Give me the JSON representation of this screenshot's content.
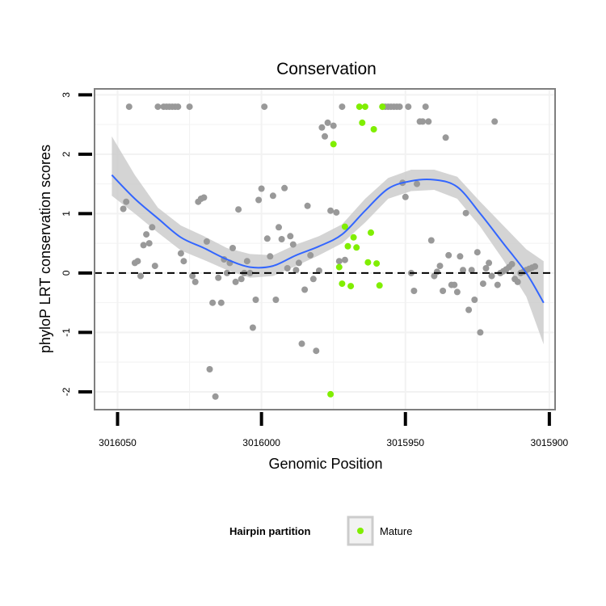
{
  "chart_data": {
    "type": "scatter",
    "title": "Conservation",
    "xlabel": "Genomic Position",
    "ylabel": "phyloP LRT conservation scores",
    "x_reversed": true,
    "xlim": [
      3016058,
      3015898
    ],
    "ylim": [
      -2.3,
      3.1
    ],
    "x_ticks": [
      3016050,
      3016000,
      3015950,
      3015900
    ],
    "x_tick_labels": [
      "3016050",
      "3016000",
      "3015950",
      "3015900"
    ],
    "y_ticks": [
      -2,
      -1,
      0,
      1,
      2,
      3
    ],
    "y_tick_labels": [
      "-2",
      "-1",
      "0",
      "1",
      "2",
      "3"
    ],
    "grid": true,
    "reference_line": {
      "y": 0,
      "style": "dashed",
      "color": "#000000"
    },
    "colors": {
      "other": "#999999",
      "mature": "#80ee00",
      "smooth_line": "#3366ff",
      "ribbon": "#cccccc",
      "panel_border": "#7f7f7f",
      "grid": "#f2f2f2"
    },
    "series": [
      {
        "color_key": "other",
        "x": [
          3016048,
          3016047,
          3016046,
          3016044,
          3016043,
          3016042,
          3016041,
          3016040,
          3016039,
          3016038,
          3016037,
          3016036,
          3016034,
          3016033,
          3016032,
          3016031,
          3016030,
          3016029,
          3016028,
          3016027,
          3016025,
          3016024,
          3016023,
          3016022,
          3016021,
          3016020,
          3016019,
          3016018,
          3016017,
          3016016,
          3016015,
          3016014,
          3016013,
          3016012,
          3016011,
          3016010,
          3016009,
          3016008,
          3016007,
          3016006,
          3016005,
          3016004,
          3016003,
          3016002,
          3016001,
          3016000,
          3015999,
          3015998,
          3015997,
          3015996,
          3015995,
          3015994,
          3015993,
          3015992,
          3015991,
          3015990,
          3015989,
          3015988,
          3015987,
          3015986,
          3015985,
          3015984,
          3015983,
          3015982,
          3015981,
          3015980,
          3015979,
          3015978,
          3015977,
          3015976,
          3015975,
          3015974,
          3015973,
          3015972,
          3015971,
          3015958,
          3015957,
          3015956,
          3015955,
          3015954,
          3015953,
          3015952,
          3015951,
          3015950,
          3015949,
          3015948,
          3015947,
          3015946,
          3015945,
          3015944,
          3015943,
          3015942,
          3015941,
          3015940,
          3015939,
          3015938,
          3015937,
          3015936,
          3015935,
          3015934,
          3015933,
          3015932,
          3015931,
          3015930,
          3015929,
          3015928,
          3015927,
          3015926,
          3015925,
          3015924,
          3015923,
          3015922,
          3015921,
          3015920,
          3015919,
          3015918,
          3015917,
          3015916,
          3015915,
          3015914,
          3015913,
          3015912,
          3015911,
          3015910,
          3015909,
          3015908,
          3015907,
          3015906,
          3015905
        ],
        "y": [
          1.08,
          1.2,
          2.8,
          0.17,
          0.2,
          -0.05,
          0.47,
          0.65,
          0.5,
          0.77,
          0.12,
          2.8,
          2.8,
          2.8,
          2.8,
          2.8,
          2.8,
          2.8,
          0.33,
          0.2,
          2.8,
          -0.05,
          -0.15,
          1.2,
          1.25,
          1.27,
          0.53,
          -1.62,
          -0.5,
          -2.08,
          -0.08,
          -0.5,
          0.23,
          0.0,
          0.17,
          0.42,
          -0.15,
          1.07,
          -0.1,
          0.0,
          0.2,
          0.0,
          -0.92,
          -0.45,
          1.23,
          1.42,
          2.8,
          0.58,
          0.28,
          1.3,
          -0.45,
          0.77,
          0.57,
          1.43,
          0.08,
          0.62,
          0.48,
          0.05,
          0.17,
          -1.19,
          -0.28,
          1.13,
          0.3,
          -0.1,
          -1.31,
          0.04,
          2.45,
          2.3,
          2.53,
          1.05,
          2.48,
          1.02,
          0.2,
          2.8,
          0.22,
          2.8,
          2.8,
          2.8,
          2.8,
          2.8,
          2.8,
          2.8,
          1.52,
          1.28,
          2.8,
          0.0,
          -0.3,
          1.5,
          2.55,
          2.55,
          2.8,
          2.55,
          0.55,
          -0.05,
          0.02,
          0.12,
          -0.3,
          2.28,
          0.3,
          -0.2,
          -0.2,
          -0.32,
          0.28,
          0.05,
          1.01,
          -0.62,
          0.05,
          -0.45,
          0.35,
          -1.0,
          -0.18,
          0.08,
          0.17,
          -0.05,
          2.55,
          -0.2,
          0.0,
          0.03,
          0.06,
          0.1,
          0.15,
          -0.1,
          -0.15,
          0.0,
          0.02,
          0.05,
          0.07,
          0.09,
          0.11
        ]
      },
      {
        "name": "Mature",
        "color_key": "mature",
        "x": [
          3015976,
          3015975,
          3015973,
          3015972,
          3015971,
          3015970,
          3015969,
          3015968,
          3015967,
          3015966,
          3015965,
          3015964,
          3015963,
          3015962,
          3015961,
          3015960,
          3015959,
          3015958
        ],
        "y": [
          -2.04,
          2.17,
          0.1,
          -0.18,
          0.78,
          0.45,
          -0.22,
          0.6,
          0.43,
          2.8,
          2.53,
          2.8,
          0.18,
          0.68,
          2.42,
          0.16,
          -0.21,
          2.8
        ]
      }
    ],
    "smooth": {
      "x": [
        3016052,
        3016044,
        3016036,
        3016028,
        3016020,
        3016012,
        3016004,
        3015996,
        3015988,
        3015980,
        3015972,
        3015964,
        3015956,
        3015948,
        3015940,
        3015932,
        3015924,
        3015916,
        3015908,
        3015902
      ],
      "y": [
        1.65,
        1.25,
        0.92,
        0.6,
        0.42,
        0.23,
        0.1,
        0.12,
        0.3,
        0.45,
        0.65,
        1.05,
        1.42,
        1.55,
        1.57,
        1.45,
        1.0,
        0.5,
        0.0,
        -0.5
      ],
      "lower": [
        1.3,
        1.0,
        0.68,
        0.38,
        0.22,
        0.05,
        -0.08,
        -0.05,
        0.12,
        0.3,
        0.5,
        0.85,
        1.25,
        1.38,
        1.4,
        1.25,
        0.78,
        0.22,
        -0.4,
        -1.2
      ],
      "upper": [
        2.3,
        1.65,
        1.1,
        0.8,
        0.62,
        0.42,
        0.32,
        0.3,
        0.48,
        0.62,
        0.82,
        1.25,
        1.6,
        1.74,
        1.74,
        1.62,
        1.2,
        0.8,
        0.4,
        0.2
      ]
    },
    "legend": {
      "title": "Hairpin partition",
      "placement": "bottom",
      "items": [
        {
          "label": "Mature",
          "color_key": "mature"
        }
      ]
    }
  }
}
